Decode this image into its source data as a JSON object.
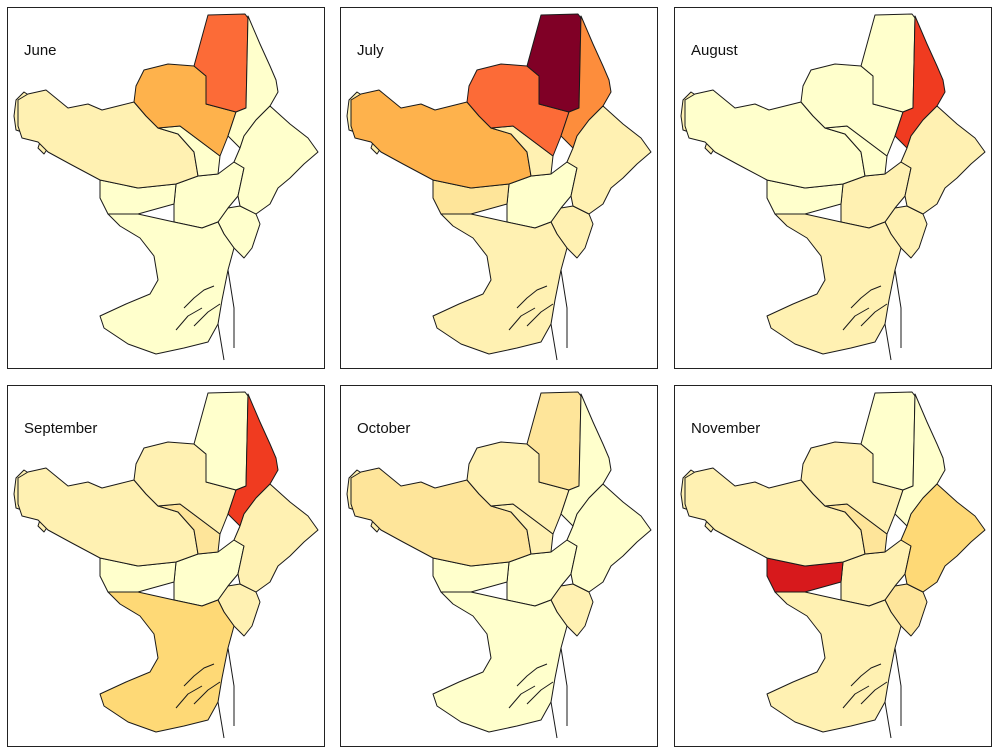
{
  "palette": {
    "c0": "#ffffcc",
    "c1": "#fff1b2",
    "c2": "#fee59a",
    "c3": "#fed976",
    "c4": "#feb24c",
    "c5": "#fd8d3c",
    "c6": "#fc6b37",
    "c7": "#f03b20",
    "c8": "#d7191c",
    "c9": "#800026"
  },
  "district_ids": [
    "ciutat_vella",
    "eixample",
    "sants_montjuic",
    "les_corts",
    "sarria_sant_gervasi",
    "gracia",
    "horta_guinardo",
    "nou_barris",
    "sant_andreu",
    "sant_marti"
  ],
  "panels": [
    {
      "title": "June",
      "levels": {
        "ciutat_vella": 0,
        "eixample": 0,
        "sants_montjuic": 0,
        "les_corts": 0,
        "sarria_sant_gervasi": 1,
        "gracia": 0,
        "horta_guinardo": 4,
        "nou_barris": 6,
        "sant_andreu": 0,
        "sant_marti": 0
      }
    },
    {
      "title": "July",
      "levels": {
        "ciutat_vella": 1,
        "eixample": 0,
        "sants_montjuic": 1,
        "les_corts": 2,
        "sarria_sant_gervasi": 4,
        "gracia": 1,
        "horta_guinardo": 6,
        "nou_barris": 9,
        "sant_andreu": 5,
        "sant_marti": 1
      }
    },
    {
      "title": "August",
      "levels": {
        "ciutat_vella": 1,
        "eixample": 1,
        "sants_montjuic": 1,
        "les_corts": 0,
        "sarria_sant_gervasi": 0,
        "gracia": 0,
        "horta_guinardo": 0,
        "nou_barris": 0,
        "sant_andreu": 7,
        "sant_marti": 1
      }
    },
    {
      "title": "September",
      "levels": {
        "ciutat_vella": 1,
        "eixample": 0,
        "sants_montjuic": 3,
        "les_corts": 0,
        "sarria_sant_gervasi": 1,
        "gracia": 2,
        "horta_guinardo": 1,
        "nou_barris": 0,
        "sant_andreu": 7,
        "sant_marti": 1
      }
    },
    {
      "title": "October",
      "levels": {
        "ciutat_vella": 1,
        "eixample": 0,
        "sants_montjuic": 0,
        "les_corts": 0,
        "sarria_sant_gervasi": 2,
        "gracia": 1,
        "horta_guinardo": 1,
        "nou_barris": 2,
        "sant_andreu": 0,
        "sant_marti": 0
      }
    },
    {
      "title": "November",
      "levels": {
        "ciutat_vella": 2,
        "eixample": 1,
        "sants_montjuic": 1,
        "les_corts": 8,
        "sarria_sant_gervasi": 1,
        "gracia": 2,
        "horta_guinardo": 1,
        "nou_barris": 0,
        "sant_andreu": 0,
        "sant_marti": 3
      }
    }
  ]
}
